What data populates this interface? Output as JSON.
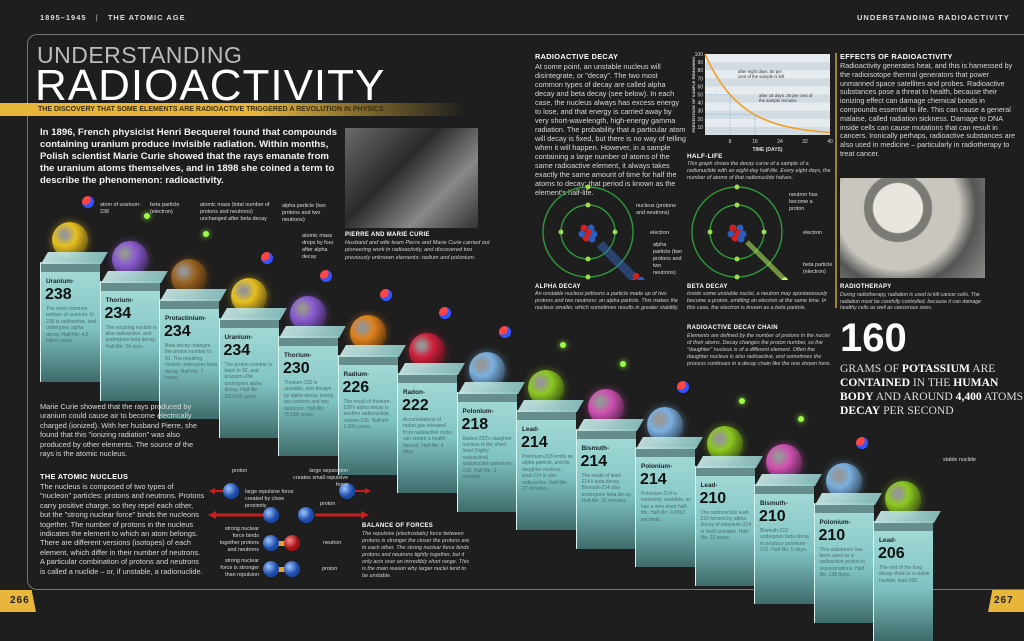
{
  "header": {
    "era": "1895–1945",
    "separator": "|",
    "chapter": "THE ATOMIC AGE",
    "right": "UNDERSTANDING RADIOACTIVITY"
  },
  "title": {
    "line1": "UNDERSTANDING",
    "line2": "RADIOACTIVITY",
    "banner": "THE DISCOVERY THAT SOME ELEMENTS ARE RADIOACTIVE TRIGGERED A REVOLUTION IN PHYSICS"
  },
  "intro": "In 1896, French physicist Henri Becquerel found that compounds containing uranium produce invisible radiation. Within months, Polish scientist Marie Curie showed that the rays emanate from the uranium atoms themselves, and in 1898 she coined a term to describe the phenomenon: radioactivity.",
  "curie_photo": {
    "heading": "PIERRE AND MARIE CURIE",
    "caption": "Husband and wife team Pierre and Marie Curie carried out pioneering work in radioactivity, and discovered two previously unknown elements: radium and polonium."
  },
  "curie_text": "Marie Curie showed that the rays produced by uranium could cause air to become electrically charged (ionized). With her husband Pierre, she found that this \"ionizing radiation\" was also produced by other elements. The source of the rays is the atomic nucleus.",
  "nucleus": {
    "heading": "THE ATOMIC NUCLEUS",
    "text": "The nucleus is composed of two types of \"nucleon\" particles: protons and neutrons. Protons carry positive charge, so they repel each other, but the \"strong nuclear force\" binds the nucleons together. The number of protons in the nucleus indicates the element to which an atom belongs. There are different versions (isotopes) of each element, which differ in their number of neutrons. A particular combination of protons and neutrons is called a nuclide – or, if unstable, a radionuclide."
  },
  "forces_diagram": {
    "proton": "proton",
    "large_sep": "large separation creates small repulsive force",
    "large_force": "large repulsive force created by close proximity",
    "proton2": "proton",
    "strong_binds": "strong nuclear force binds together protons and neutrons",
    "neutron": "neutron",
    "strong_stronger": "strong nuclear force is stronger than repulsion",
    "proton3": "proton"
  },
  "balance": {
    "heading": "BALANCE OF FORCES",
    "text": "The repulsive (electrostatic) force between protons is stronger the closer the protons are to each other. The strong nuclear force binds protons and neutrons tightly together, but it only acts over an incredibly short range. This is the main reason why larger nuclei tend to be unstable."
  },
  "decay": {
    "heading": "RADIOACTIVE DECAY",
    "text": "At some point, an unstable nucleus will disintegrate, or \"decay\". The two most common types of decay are called alpha decay and beta decay (see below). In each case, the nucleus always has excess energy to lose, and that energy is carried away by very short-wavelength, high-energy gamma radiation. The probability that a particular atom will decay is fixed, but there is no way of telling when it will happen. However, in a sample containing a large number of atoms of the same radioactive element, it always takes exactly the same amount of time for half the atoms to decay; that period is known as the element's half-life."
  },
  "chart_data": {
    "type": "line",
    "xlabel": "TIME (DAYS)",
    "ylabel": "PERCENTAGE OF SAMPLE REMAINING",
    "xlim": [
      0,
      40
    ],
    "ylim": [
      0,
      100
    ],
    "xticks": [
      8,
      16,
      24,
      32,
      40
    ],
    "yticks": [
      10,
      20,
      30,
      40,
      50,
      60,
      70,
      80,
      90,
      100
    ],
    "half_life_days": 8,
    "series": [
      {
        "x": [
          0,
          4,
          8,
          12,
          16,
          20,
          24,
          28,
          32,
          36,
          40
        ],
        "y": [
          100,
          70.7,
          50,
          35.4,
          25,
          17.7,
          12.5,
          8.8,
          6.25,
          4.4,
          3.1
        ]
      }
    ],
    "annotations": [
      {
        "x": 8,
        "y": 50,
        "text": "after eight days, 50 per cent of the sample is left"
      },
      {
        "x": 16,
        "y": 25,
        "text": "after 16 days, 25 per cent of the sample remains"
      }
    ],
    "line_color": "#f0a020",
    "grid": true
  },
  "halflife": {
    "heading": "HALF-LIFE",
    "text": "This graph shows the decay curve of a sample of a radionuclide with an eight-day half-life. Every eight days, the number of atoms of that radionuclide halves."
  },
  "alpha": {
    "nucleus_label": "nucleus (protons and neutrons)",
    "electron_label": "electron",
    "particle_label": "alpha particle (two protons and two neutrons)",
    "heading": "ALPHA DECAY",
    "text": "An unstable nucleus jettisons a particle made up of two protons and two neutrons: an alpha particle. This makes the nucleus smaller, which sometimes results in greater stability."
  },
  "beta": {
    "nucleus_label": "neutron has become a proton",
    "electron_label": "electron",
    "particle_label": "beta particle (electron)",
    "heading": "BETA DECAY",
    "text": "Inside some unstable nuclei, a neutron may spontaneously become a proton, emitting an electron at the same time. In this case, the electron is known as a beta particle."
  },
  "chain_info": {
    "heading": "RADIOACTIVE DECAY CHAIN",
    "text": "Elements are defined by the number of protons in the nuclei of their atoms. Decay changes the proton number, so the \"daughter\" nucleus is of a different element. Often the daughter nucleus is also radioactive, and sometimes the process continues in a decay chain like the one shown here."
  },
  "chain_labels": {
    "atom": "atom of uranium-238",
    "beta": "beta particle (electron)",
    "mass_same": "atomic mass (total number of protons and neutrons) unchanged after beta decay",
    "alpha": "alpha particle (two protons and two neutrons)",
    "mass_drop": "atomic mass drops by four after alpha decay",
    "stable": "stable nuclide"
  },
  "chain": [
    {
      "element": "Uranium-",
      "mass": "238",
      "desc": "The most common isotope of uranium, U-238 is radioactive, and undergoes alpha decay. Half-life: 4.5 billion years.",
      "color": "#e8c020",
      "emits": "alpha"
    },
    {
      "element": "Thorium-",
      "mass": "234",
      "desc": "The resulting nuclide is also radioactive, and undergoes beta decay. Half-life: 24 days.",
      "color": "#8a5ad0",
      "emits": "beta"
    },
    {
      "element": "Protactinium-",
      "mass": "234",
      "desc": "Beta decay changes the proton number to 91. The resulting nuclide undergoes beta decay. Half-life: 7 hours.",
      "color": "#9a6220",
      "emits": "beta"
    },
    {
      "element": "Uranium-",
      "mass": "234",
      "desc": "The proton number is back to 92, and uranium-234 undergoes alpha decay. Half-life: 250,000 years.",
      "color": "#e8c020",
      "emits": "alpha"
    },
    {
      "element": "Thorium-",
      "mass": "230",
      "desc": "Thorium-230 is unstable, and decays by alpha decay, losing two protons and two neutrons. Half-life: 75,000 years.",
      "color": "#8a5ad0",
      "emits": "alpha"
    },
    {
      "element": "Radium-",
      "mass": "226",
      "desc": "The result of thorium-230's alpha decay is another radionuclide, radium-226. Half-life: 1,600 years.",
      "color": "#e0801a",
      "emits": "alpha"
    },
    {
      "element": "Radon-",
      "mass": "222",
      "desc": "Accumulations of radon gas released from radioactive rocks can create a health hazard. Half-life: 4 days.",
      "color": "#d0203c",
      "emits": "alpha"
    },
    {
      "element": "Polonium-",
      "mass": "218",
      "desc": "Radon-222's daughter nucleus is the short-lived (highly radioactive) radionuclide polonium-218. Half-life: 3 minutes.",
      "color": "#7ab0e0",
      "emits": "alpha"
    },
    {
      "element": "Lead-",
      "mass": "214",
      "desc": "Polonium-218 emits an alpha particle, and its daughter nucleus, lead-214 is also radioactive. Half-life: 27 minutes.",
      "color": "#8cc820",
      "emits": "beta"
    },
    {
      "element": "Bismuth-",
      "mass": "214",
      "desc": "The result of lead-214's beta decay. Bismuth-214 also undergoes beta decay. Half-life: 20 minutes.",
      "color": "#d050b0",
      "emits": "beta"
    },
    {
      "element": "Polonium-",
      "mass": "214",
      "desc": "Polonium-214 is extremely unstable, so has a very short half-life. Half-life: 0.0002 seconds.",
      "color": "#7ab0e0",
      "emits": "alpha"
    },
    {
      "element": "Lead-",
      "mass": "210",
      "desc": "The radionuclide lead-210 formed by alpha decay of polonium-214 is itself unstable. Half-life: 22 years.",
      "color": "#8cc820",
      "emits": "beta"
    },
    {
      "element": "Bismuth-",
      "mass": "210",
      "desc": "Bismuth-210 undergoes beta decay to produce polonium-210. Half-life: 5 days.",
      "color": "#d050b0",
      "emits": "beta"
    },
    {
      "element": "Polonium-",
      "mass": "210",
      "desc": "This substance has been used as a radioactive poison in assassinations. Half-life: 138 days.",
      "color": "#7ab0e0",
      "emits": "alpha"
    },
    {
      "element": "Lead-",
      "mass": "206",
      "desc": "The end of the long decay chain is a stable nuclide, lead-206.",
      "color": "#8cc820",
      "emits": "none"
    }
  ],
  "effects": {
    "heading": "EFFECTS OF RADIOACTIVITY",
    "text": "Radioactivity generates heat, and this is harnessed by the radioisotope thermal generators that power unmanned space satellites and probes. Radioactive substances pose a threat to health, because their ionizing effect can damage chemical bonds in compounds essential to life. This can cause a general malaise, called radiation sickness. Damage to DNA inside cells can cause mutations that can result in cancers. Ironically perhaps, radioactive substances are also used in medicine – particularly in radiotherapy to treat cancer."
  },
  "radiotherapy": {
    "heading": "RADIOTHERAPY",
    "caption": "During radiotherapy, radiation is used to kill cancer cells. The radiation must be carefully controlled, because it can damage healthy cells as well as cancerous ones."
  },
  "stat": {
    "number": "160",
    "p1": "GRAMS OF ",
    "b1": "POTASSIUM",
    "p2": " ARE ",
    "b2": "CONTAINED",
    "p3": " IN THE ",
    "b3": "HUMAN BODY",
    "p4": " AND AROUND ",
    "b4": "4,400",
    "p5": " ATOMS ",
    "b5": "DECAY",
    "p6": " PER SECOND"
  },
  "pages": {
    "left": "266",
    "right": "267"
  },
  "colors": {
    "accent": "#e7b63a",
    "proton": "#d02020",
    "neutron": "#2a5fc0",
    "electron": "#8ed040",
    "force_arrow": "#c81e1e"
  }
}
